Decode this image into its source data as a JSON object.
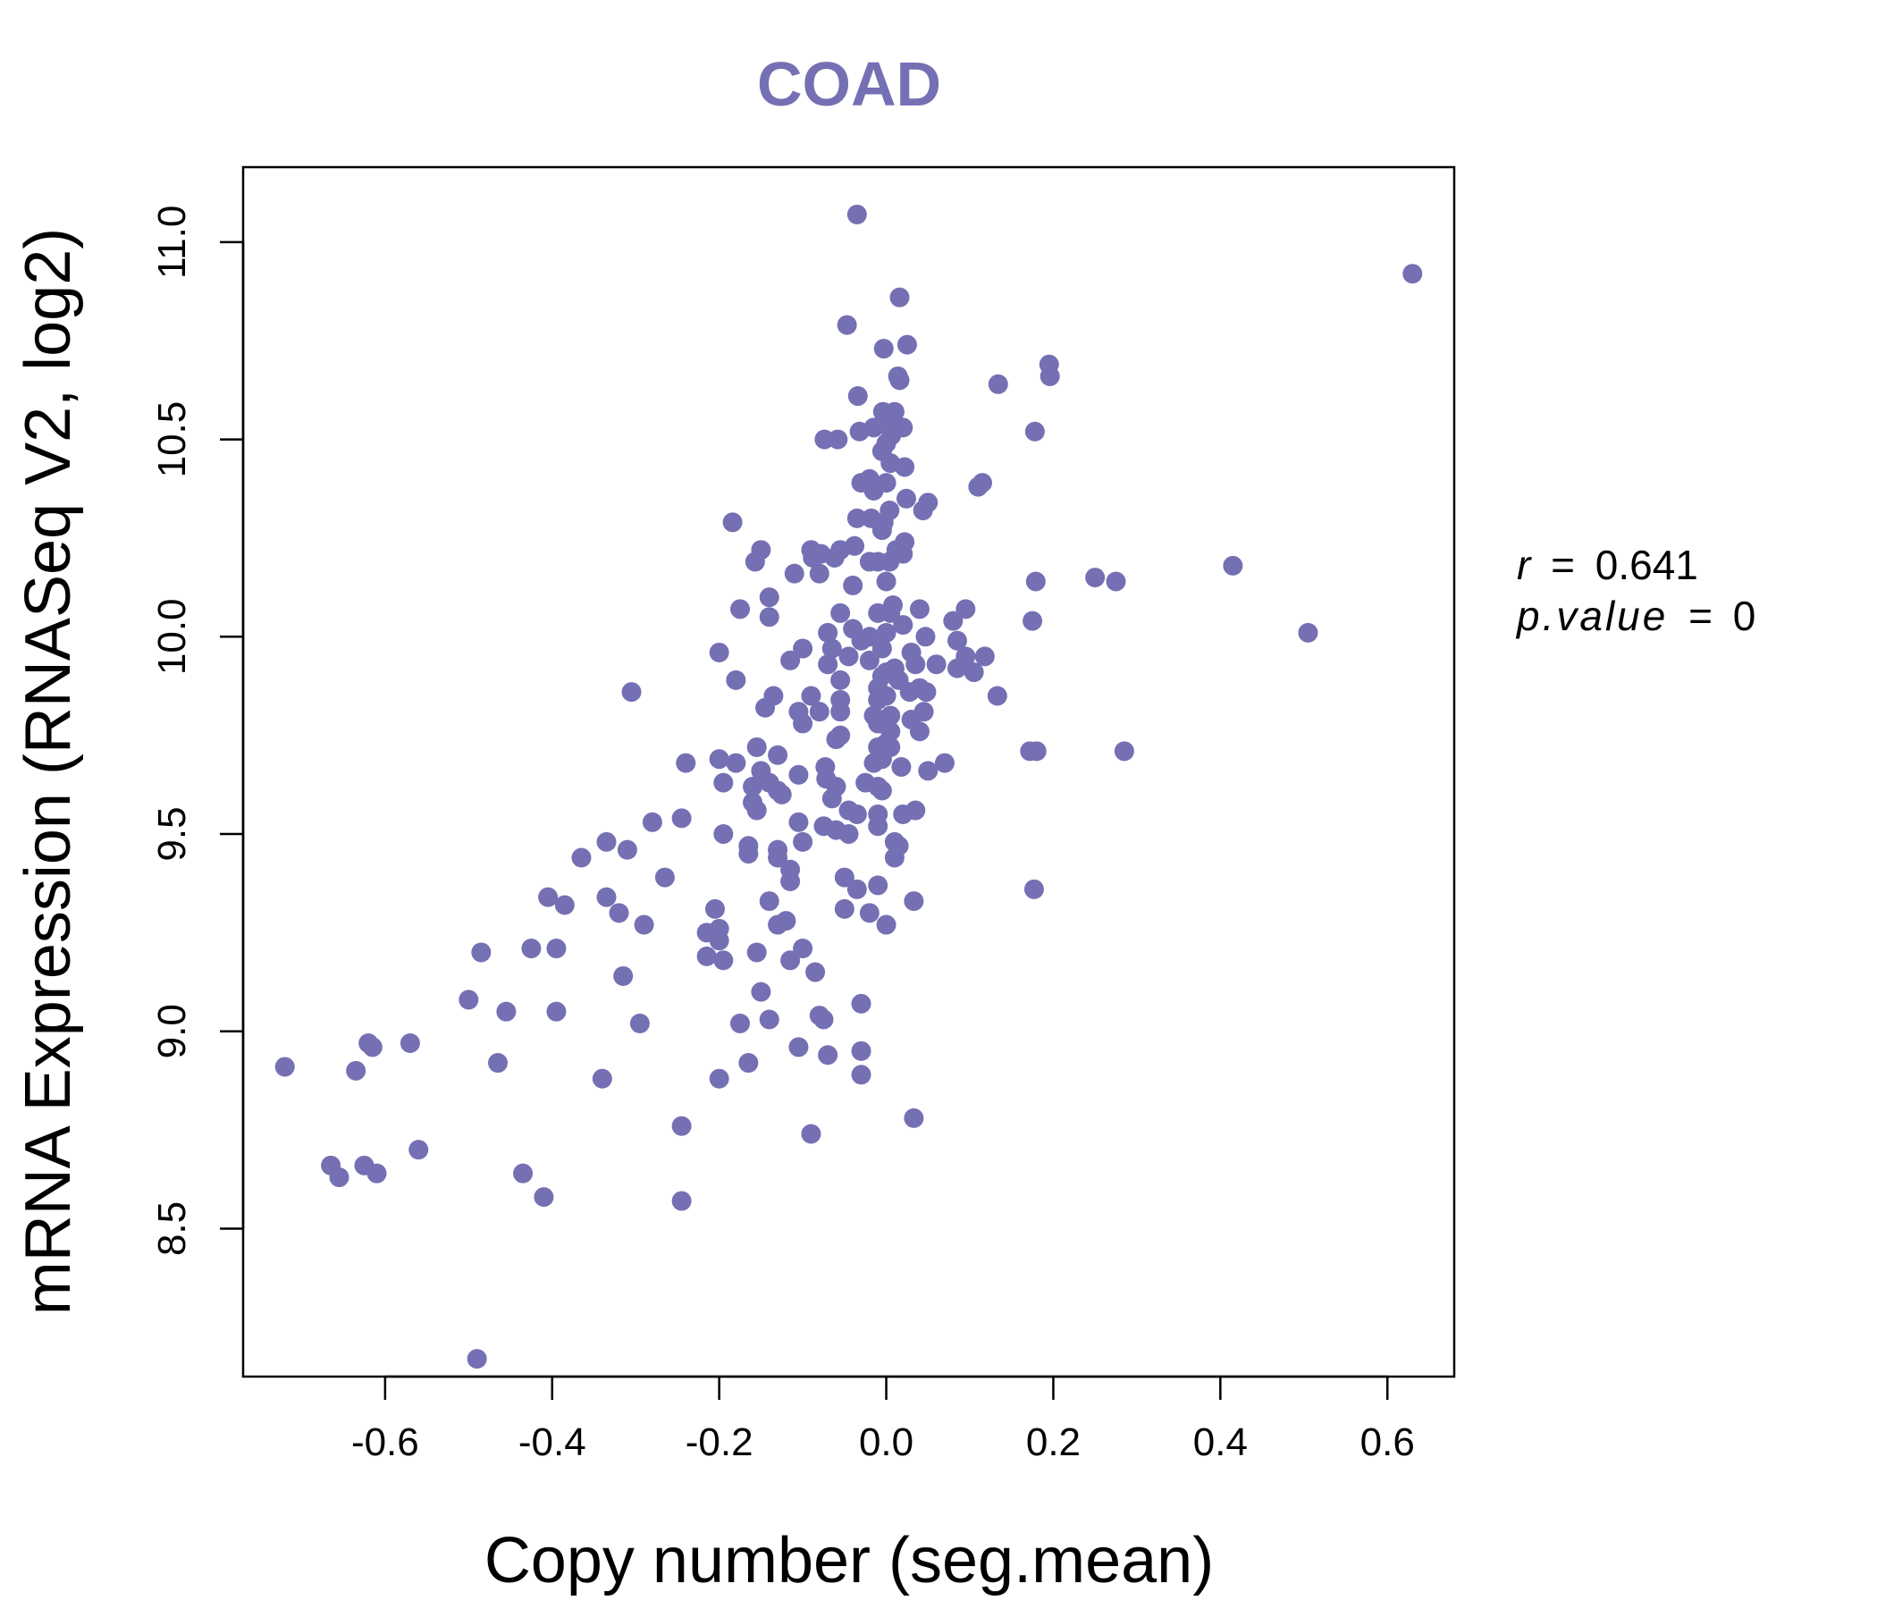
{
  "colors": {
    "point": "#7570b3",
    "title": "#7570b3",
    "axis": "#000000"
  },
  "stats": {
    "r_symbol": "r",
    "r_value": "0.641",
    "p_symbol": "p.value",
    "p_value": "0",
    "equals": "="
  },
  "chart_data": {
    "type": "scatter",
    "title": "COAD",
    "xlabel": "Copy number (seg.mean)",
    "ylabel": "mRNA Expression (RNASeq V2, log2)",
    "xlim": [
      -0.77,
      0.68
    ],
    "ylim": [
      8.125,
      11.19
    ],
    "xticks": [
      -0.6,
      -0.4,
      -0.2,
      0.0,
      0.2,
      0.4,
      0.6
    ],
    "xtick_labels": [
      "-0.6",
      "-0.4",
      "-0.2",
      "0.0",
      "0.2",
      "0.4",
      "0.6"
    ],
    "yticks": [
      8.5,
      9.0,
      9.5,
      10.0,
      10.5,
      11.0
    ],
    "ytick_labels": [
      "8.5",
      "9.0",
      "9.5",
      "10.0",
      "10.5",
      "11.0"
    ],
    "points": [
      [
        -0.035,
        11.07
      ],
      [
        0.63,
        10.92
      ],
      [
        0.016,
        10.86
      ],
      [
        -0.047,
        10.79
      ],
      [
        0.025,
        10.74
      ],
      [
        -0.003,
        10.73
      ],
      [
        0.195,
        10.69
      ],
      [
        0.196,
        10.66
      ],
      [
        0.134,
        10.64
      ],
      [
        0.014,
        10.66
      ],
      [
        0.016,
        10.65
      ],
      [
        -0.034,
        10.61
      ],
      [
        -0.004,
        10.57
      ],
      [
        0.01,
        10.57
      ],
      [
        0.0,
        10.55
      ],
      [
        0.02,
        10.53
      ],
      [
        -0.015,
        10.53
      ],
      [
        -0.032,
        10.52
      ],
      [
        0.178,
        10.52
      ],
      [
        0.006,
        10.51
      ],
      [
        -0.074,
        10.5
      ],
      [
        -0.058,
        10.5
      ],
      [
        0.0,
        10.49
      ],
      [
        -0.005,
        10.47
      ],
      [
        0.005,
        10.44
      ],
      [
        0.022,
        10.43
      ],
      [
        -0.02,
        10.4
      ],
      [
        0.11,
        10.38
      ],
      [
        0.115,
        10.39
      ],
      [
        -0.03,
        10.39
      ],
      [
        0.0,
        10.39
      ],
      [
        -0.015,
        10.37
      ],
      [
        0.024,
        10.35
      ],
      [
        0.05,
        10.34
      ],
      [
        0.044,
        10.32
      ],
      [
        0.004,
        10.32
      ],
      [
        -0.018,
        10.3
      ],
      [
        -0.003,
        10.29
      ],
      [
        -0.035,
        10.3
      ],
      [
        -0.184,
        10.29
      ],
      [
        -0.005,
        10.27
      ],
      [
        0.022,
        10.24
      ],
      [
        0.012,
        10.22
      ],
      [
        -0.038,
        10.23
      ],
      [
        -0.15,
        10.22
      ],
      [
        -0.09,
        10.22
      ],
      [
        -0.055,
        10.22
      ],
      [
        -0.062,
        10.2
      ],
      [
        0.02,
        10.21
      ],
      [
        -0.078,
        10.21
      ],
      [
        -0.088,
        10.2
      ],
      [
        -0.157,
        10.19
      ],
      [
        0.004,
        10.19
      ],
      [
        -0.02,
        10.19
      ],
      [
        -0.01,
        10.19
      ],
      [
        -0.11,
        10.16
      ],
      [
        -0.08,
        10.16
      ],
      [
        0.25,
        10.15
      ],
      [
        0.275,
        10.14
      ],
      [
        0.415,
        10.18
      ],
      [
        0.179,
        10.14
      ],
      [
        0.0,
        10.14
      ],
      [
        -0.04,
        10.13
      ],
      [
        -0.14,
        10.1
      ],
      [
        0.008,
        10.08
      ],
      [
        -0.175,
        10.07
      ],
      [
        0.04,
        10.07
      ],
      [
        0.095,
        10.07
      ],
      [
        0.005,
        10.06
      ],
      [
        -0.055,
        10.06
      ],
      [
        -0.01,
        10.06
      ],
      [
        -0.14,
        10.05
      ],
      [
        0.08,
        10.04
      ],
      [
        0.175,
        10.04
      ],
      [
        0.02,
        10.03
      ],
      [
        -0.04,
        10.02
      ],
      [
        -0.07,
        10.01
      ],
      [
        0.0,
        10.01
      ],
      [
        0.505,
        10.01
      ],
      [
        0.047,
        10.0
      ],
      [
        -0.02,
        10.0
      ],
      [
        -0.03,
        9.99
      ],
      [
        0.085,
        9.99
      ],
      [
        -0.065,
        9.97
      ],
      [
        -0.1,
        9.97
      ],
      [
        -0.005,
        9.97
      ],
      [
        0.03,
        9.96
      ],
      [
        -0.2,
        9.96
      ],
      [
        0.118,
        9.95
      ],
      [
        0.095,
        9.95
      ],
      [
        -0.045,
        9.95
      ],
      [
        -0.115,
        9.94
      ],
      [
        -0.02,
        9.94
      ],
      [
        0.035,
        9.93
      ],
      [
        0.06,
        9.93
      ],
      [
        -0.07,
        9.93
      ],
      [
        0.085,
        9.92
      ],
      [
        0.01,
        9.92
      ],
      [
        0.0,
        9.91
      ],
      [
        0.105,
        9.91
      ],
      [
        -0.005,
        9.9
      ],
      [
        -0.18,
        9.89
      ],
      [
        -0.055,
        9.89
      ],
      [
        0.015,
        9.89
      ],
      [
        0.04,
        9.87
      ],
      [
        -0.01,
        9.87
      ],
      [
        -0.305,
        9.86
      ],
      [
        0.028,
        9.86
      ],
      [
        0.048,
        9.86
      ],
      [
        0.0,
        9.85
      ],
      [
        -0.09,
        9.85
      ],
      [
        -0.135,
        9.85
      ],
      [
        0.133,
        9.85
      ],
      [
        -0.01,
        9.84
      ],
      [
        -0.055,
        9.84
      ],
      [
        -0.145,
        9.82
      ],
      [
        -0.08,
        9.81
      ],
      [
        0.045,
        9.81
      ],
      [
        -0.105,
        9.81
      ],
      [
        -0.055,
        9.81
      ],
      [
        -0.015,
        9.8
      ],
      [
        0.005,
        9.8
      ],
      [
        0.03,
        9.79
      ],
      [
        -0.1,
        9.78
      ],
      [
        -0.01,
        9.78
      ],
      [
        0.04,
        9.76
      ],
      [
        0.005,
        9.76
      ],
      [
        -0.055,
        9.75
      ],
      [
        -0.06,
        9.74
      ],
      [
        0.0,
        9.73
      ],
      [
        -0.01,
        9.72
      ],
      [
        0.005,
        9.72
      ],
      [
        -0.155,
        9.72
      ],
      [
        -0.13,
        9.7
      ],
      [
        0.172,
        9.71
      ],
      [
        0.18,
        9.71
      ],
      [
        0.285,
        9.71
      ],
      [
        -0.2,
        9.69
      ],
      [
        -0.005,
        9.69
      ],
      [
        -0.015,
        9.68
      ],
      [
        -0.18,
        9.68
      ],
      [
        0.07,
        9.68
      ],
      [
        -0.24,
        9.68
      ],
      [
        0.018,
        9.67
      ],
      [
        -0.073,
        9.67
      ],
      [
        -0.15,
        9.66
      ],
      [
        0.05,
        9.66
      ],
      [
        -0.105,
        9.65
      ],
      [
        -0.072,
        9.64
      ],
      [
        -0.14,
        9.63
      ],
      [
        -0.195,
        9.63
      ],
      [
        -0.025,
        9.63
      ],
      [
        -0.01,
        9.62
      ],
      [
        -0.16,
        9.62
      ],
      [
        -0.06,
        9.62
      ],
      [
        -0.13,
        9.61
      ],
      [
        -0.005,
        9.61
      ],
      [
        -0.125,
        9.6
      ],
      [
        -0.065,
        9.59
      ],
      [
        -0.16,
        9.58
      ],
      [
        -0.155,
        9.56
      ],
      [
        -0.045,
        9.56
      ],
      [
        0.035,
        9.56
      ],
      [
        -0.035,
        9.55
      ],
      [
        0.02,
        9.55
      ],
      [
        -0.01,
        9.55
      ],
      [
        -0.245,
        9.54
      ],
      [
        -0.28,
        9.53
      ],
      [
        -0.105,
        9.53
      ],
      [
        -0.075,
        9.52
      ],
      [
        -0.01,
        9.52
      ],
      [
        -0.06,
        9.51
      ],
      [
        -0.195,
        9.5
      ],
      [
        -0.045,
        9.5
      ],
      [
        0.01,
        9.48
      ],
      [
        -0.1,
        9.48
      ],
      [
        -0.335,
        9.48
      ],
      [
        0.015,
        9.47
      ],
      [
        -0.165,
        9.47
      ],
      [
        -0.13,
        9.46
      ],
      [
        -0.31,
        9.46
      ],
      [
        -0.165,
        9.45
      ],
      [
        -0.13,
        9.44
      ],
      [
        0.01,
        9.44
      ],
      [
        -0.365,
        9.44
      ],
      [
        -0.115,
        9.41
      ],
      [
        -0.05,
        9.39
      ],
      [
        -0.265,
        9.39
      ],
      [
        -0.115,
        9.38
      ],
      [
        -0.01,
        9.37
      ],
      [
        0.177,
        9.36
      ],
      [
        -0.035,
        9.36
      ],
      [
        -0.405,
        9.34
      ],
      [
        -0.335,
        9.34
      ],
      [
        0.033,
        9.33
      ],
      [
        -0.14,
        9.33
      ],
      [
        -0.385,
        9.32
      ],
      [
        -0.05,
        9.31
      ],
      [
        -0.02,
        9.3
      ],
      [
        -0.205,
        9.31
      ],
      [
        -0.32,
        9.3
      ],
      [
        -0.12,
        9.28
      ],
      [
        0.0,
        9.27
      ],
      [
        -0.29,
        9.27
      ],
      [
        -0.13,
        9.27
      ],
      [
        -0.2,
        9.26
      ],
      [
        -0.215,
        9.25
      ],
      [
        -0.2,
        9.23
      ],
      [
        -0.1,
        9.21
      ],
      [
        -0.485,
        9.2
      ],
      [
        -0.425,
        9.21
      ],
      [
        -0.395,
        9.21
      ],
      [
        -0.155,
        9.2
      ],
      [
        -0.215,
        9.19
      ],
      [
        -0.195,
        9.18
      ],
      [
        -0.115,
        9.18
      ],
      [
        -0.085,
        9.15
      ],
      [
        -0.315,
        9.14
      ],
      [
        -0.15,
        9.1
      ],
      [
        -0.5,
        9.08
      ],
      [
        -0.03,
        9.07
      ],
      [
        -0.455,
        9.05
      ],
      [
        -0.395,
        9.05
      ],
      [
        -0.08,
        9.04
      ],
      [
        -0.075,
        9.03
      ],
      [
        -0.14,
        9.03
      ],
      [
        -0.295,
        9.02
      ],
      [
        -0.175,
        9.02
      ],
      [
        -0.62,
        8.97
      ],
      [
        -0.615,
        8.96
      ],
      [
        -0.57,
        8.97
      ],
      [
        -0.105,
        8.96
      ],
      [
        -0.03,
        8.95
      ],
      [
        -0.07,
        8.94
      ],
      [
        -0.465,
        8.92
      ],
      [
        -0.165,
        8.92
      ],
      [
        -0.72,
        8.91
      ],
      [
        -0.635,
        8.9
      ],
      [
        -0.03,
        8.89
      ],
      [
        -0.34,
        8.88
      ],
      [
        -0.2,
        8.88
      ],
      [
        0.033,
        8.78
      ],
      [
        -0.245,
        8.76
      ],
      [
        -0.09,
        8.74
      ],
      [
        -0.56,
        8.7
      ],
      [
        -0.665,
        8.66
      ],
      [
        -0.625,
        8.66
      ],
      [
        -0.655,
        8.63
      ],
      [
        -0.61,
        8.64
      ],
      [
        -0.435,
        8.64
      ],
      [
        -0.41,
        8.58
      ],
      [
        -0.245,
        8.57
      ],
      [
        -0.49,
        8.17
      ]
    ]
  }
}
